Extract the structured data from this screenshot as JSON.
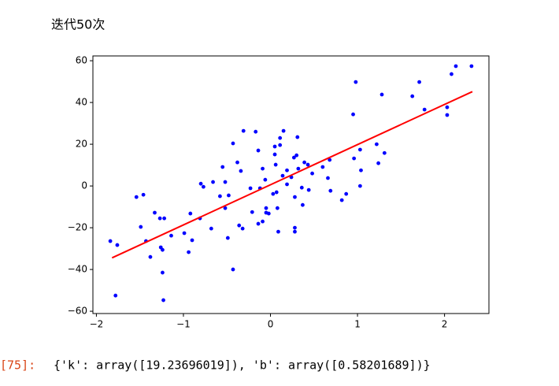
{
  "page_title": "迭代50次",
  "output_prompt": "[75]:",
  "output_text": "{'k': array([19.23696019]), 'b': array([0.58201689])}",
  "chart_data": {
    "type": "scatter",
    "xlim": [
      -2.04,
      2.51
    ],
    "ylim": [
      -61.1,
      62.3
    ],
    "xticks": [
      {
        "value": -2,
        "label": "−2"
      },
      {
        "value": -1,
        "label": "−1"
      },
      0,
      1,
      2
    ],
    "yticks": [
      {
        "value": -60,
        "label": "−60"
      },
      {
        "value": -40,
        "label": "−40"
      },
      {
        "value": -20,
        "label": "−20"
      },
      0,
      20,
      40,
      60
    ],
    "points": {
      "color": "#0000ff",
      "x": [
        -1.84,
        -1.76,
        -1.78,
        -1.54,
        -1.46,
        -1.49,
        -1.43,
        -1.38,
        -1.33,
        -1.27,
        -1.22,
        -1.26,
        -1.24,
        -1.24,
        -1.23,
        -1.14,
        -0.99,
        -0.94,
        -0.92,
        -0.9,
        -0.81,
        -0.8,
        -0.77,
        -0.68,
        -0.66,
        -0.58,
        -0.55,
        -0.52,
        -0.52,
        -0.48,
        -0.49,
        -0.43,
        -0.43,
        -0.38,
        -0.34,
        -0.36,
        -0.31,
        -0.32,
        -0.23,
        -0.21,
        -0.17,
        -0.14,
        -0.14,
        -0.12,
        -0.09,
        -0.09,
        -0.06,
        -0.05,
        -0.05,
        -0.02,
        0.03,
        0.05,
        0.05,
        0.06,
        0.07,
        0.08,
        0.09,
        0.11,
        0.11,
        0.14,
        0.15,
        0.19,
        0.19,
        0.24,
        0.27,
        0.28,
        0.28,
        0.28,
        0.3,
        0.31,
        0.32,
        0.36,
        0.37,
        0.39,
        0.43,
        0.44,
        0.48,
        0.6,
        0.66,
        0.68,
        0.69,
        0.82,
        0.87,
        0.95,
        0.96,
        0.98,
        1.03,
        1.04,
        1.03,
        1.22,
        1.24,
        1.28,
        1.31,
        1.63,
        1.71,
        1.77,
        2.03,
        2.03,
        2.08,
        2.13,
        2.31
      ],
      "y": [
        -26.4,
        -28.3,
        -52.5,
        -5.3,
        -4.2,
        -19.6,
        -26.4,
        -34,
        -12.8,
        -15.5,
        -15.5,
        -29.4,
        -30.6,
        -41.5,
        -54.7,
        -23.8,
        -22.6,
        -31.7,
        -13.2,
        -26,
        -15.5,
        1.1,
        -0.4,
        -20.4,
        1.9,
        -4.9,
        9.1,
        1.9,
        -10.6,
        -4.5,
        -24.9,
        20.4,
        -40,
        11.3,
        7.2,
        -18.9,
        26.4,
        -20.4,
        -1.1,
        -12.5,
        26,
        17,
        -18.1,
        -1.1,
        -17,
        8.3,
        3,
        -10.6,
        -12.8,
        -13.2,
        -3.8,
        18.9,
        15.1,
        10.2,
        -3,
        -10.6,
        -21.9,
        23,
        19.6,
        4.9,
        26.4,
        7.5,
        0.8,
        4.2,
        13.6,
        -5.3,
        -20,
        -21.9,
        14.7,
        23.4,
        8.3,
        -0.8,
        -9.1,
        11.3,
        10.2,
        -1.9,
        6,
        9.1,
        3.8,
        12.5,
        -2.3,
        -6.8,
        -3.8,
        34.3,
        13.2,
        49.8,
        17.4,
        7.5,
        0,
        20,
        10.9,
        43.8,
        15.8,
        43,
        49.8,
        36.6,
        37.7,
        34,
        53.6,
        57.4,
        57.4
      ]
    },
    "fit_line": {
      "color": "#ff0000",
      "x": [
        -1.82,
        2.32
      ],
      "y": [
        -34.43,
        45.21
      ]
    }
  }
}
